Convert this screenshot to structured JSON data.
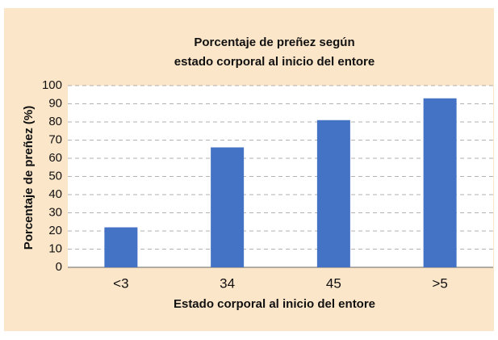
{
  "chart_data": {
    "type": "bar",
    "title": [
      "Porcentaje de preñez según",
      "estado corporal al inicio del entore"
    ],
    "x_label": "Estado corporal al inicio del entore",
    "y_label": "Porcentaje de preñez (%)",
    "categories": [
      "<3",
      "34",
      "45",
      ">5"
    ],
    "values": [
      22,
      66,
      81,
      93
    ],
    "color": "#4472c4",
    "ylim": [
      0,
      100
    ],
    "yticks": [
      0,
      10,
      20,
      30,
      40,
      50,
      60,
      70,
      80,
      90,
      100
    ],
    "grid": true
  }
}
